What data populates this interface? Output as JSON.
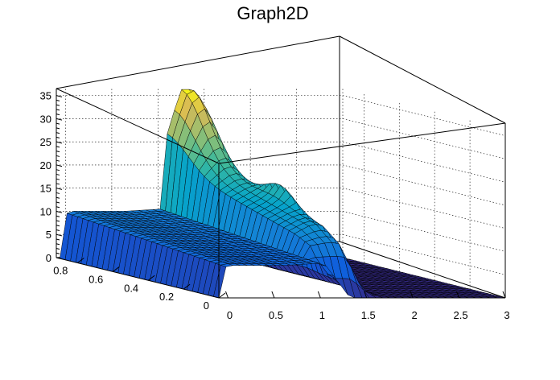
{
  "chart_data": {
    "type": "surface",
    "title": "Graph2D",
    "xlabel": "",
    "ylabel": "",
    "zlabel": "",
    "xlim": [
      -0.1,
      3.0
    ],
    "ylim": [
      0.0,
      0.92
    ],
    "zlim": [
      0,
      36.5
    ],
    "x_ticks": [
      "0",
      "0.5",
      "1",
      "1.5",
      "2",
      "2.5",
      "3"
    ],
    "y_ticks": [
      "0",
      "0.2",
      "0.4",
      "0.6",
      "0.8"
    ],
    "z_ticks": [
      "0",
      "5",
      "10",
      "15",
      "20",
      "25",
      "30",
      "35"
    ],
    "colormap": "viridis-like (blue to yellow)",
    "grid": true,
    "surface_description": "Surface defined over x in [0,3], y in [0,0.9]. Low plateau ~7-12 for x<1; near-zero floor for x>1.3 and y<0.6; sharp ridge near x~1.3 rising to a peak of ~36 at x~1.3, y~0.9."
  }
}
